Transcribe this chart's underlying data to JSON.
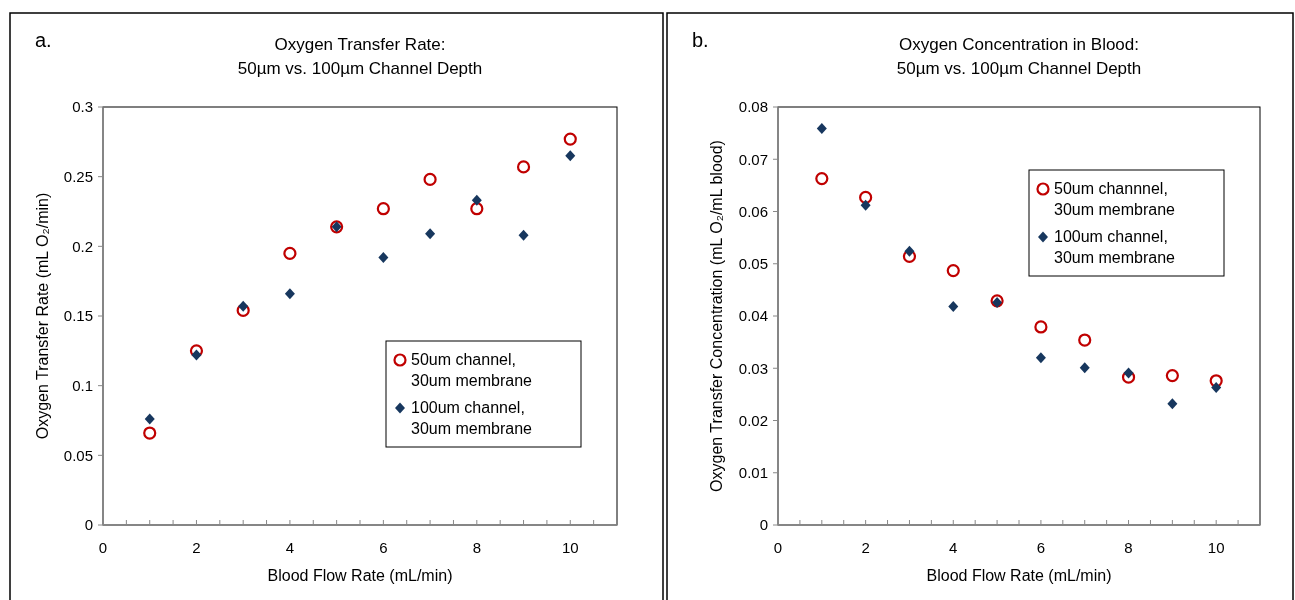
{
  "chart_data": [
    {
      "type": "scatter",
      "title": "Oxygen Transfer Rate:\n50µm vs. 100µm Channel Depth",
      "xlabel": "Blood Flow Rate (mL/min)",
      "ylabel": "Oxygen Transfer Rate (mL O₂/min)",
      "annotations": [
        "a."
      ],
      "x": [
        1,
        2,
        3,
        4,
        5,
        6,
        7,
        8,
        9,
        10
      ],
      "series": [
        {
          "name": "50um channel, 30um membrane",
          "color": "#c00000",
          "marker": "circle",
          "values": [
            0.066,
            0.125,
            0.154,
            0.195,
            0.214,
            0.227,
            0.248,
            0.227,
            0.257,
            0.277
          ]
        },
        {
          "name": "100um channel, 30um membrane",
          "color": "#17375e",
          "marker": "diamond",
          "values": [
            0.076,
            0.122,
            0.157,
            0.166,
            0.214,
            0.192,
            0.209,
            0.233,
            0.208,
            0.265
          ]
        }
      ],
      "xlim": [
        0,
        11
      ],
      "xticks": [
        0,
        {
          "value": 0.5,
          "label": null
        },
        {
          "value": 1,
          "label": null
        },
        {
          "value": 1.5,
          "label": null
        },
        2,
        {
          "value": 2.5,
          "label": null
        },
        {
          "value": 3,
          "label": null
        },
        {
          "value": 3.5,
          "label": null
        },
        4,
        {
          "value": 4.5,
          "label": null
        },
        {
          "value": 5,
          "label": null
        },
        {
          "value": 5.5,
          "label": null
        },
        6,
        {
          "value": 6.5,
          "label": null
        },
        {
          "value": 7,
          "label": null
        },
        {
          "value": 7.5,
          "label": null
        },
        8,
        {
          "value": 8.5,
          "label": null
        },
        {
          "value": 9,
          "label": null
        },
        {
          "value": 9.5,
          "label": null
        },
        10,
        {
          "value": 10.5,
          "label": null
        },
        {
          "value": 11,
          "label": null
        }
      ],
      "ylim": [
        0,
        0.3
      ],
      "yticks": [
        0,
        0.05,
        0.1,
        0.15,
        0.2,
        0.25,
        0.3
      ],
      "grid": false,
      "legend": "bottom right"
    },
    {
      "type": "scatter",
      "title": "Oxygen Concentration in Blood:\n50µm vs. 100µm Channel Depth",
      "xlabel": "Blood Flow Rate (mL/min)",
      "ylabel": "Oxygen Transfer Concentration (mL O₂/mL blood)",
      "annotations": [
        "b."
      ],
      "x": [
        1,
        2,
        3,
        4,
        5,
        6,
        7,
        8,
        9,
        10
      ],
      "series": [
        {
          "name": "50um channnel, 30um membrane",
          "color": "#c00000",
          "marker": "circle",
          "values": [
            0.0663,
            0.0627,
            0.0514,
            0.0487,
            0.0429,
            0.0379,
            0.0354,
            0.0283,
            0.0286,
            0.0276
          ]
        },
        {
          "name": "100um channel, 30um membrane",
          "color": "#17375e",
          "marker": "diamond",
          "values": [
            0.0759,
            0.0612,
            0.0524,
            0.0418,
            0.0426,
            0.032,
            0.0301,
            0.0291,
            0.0232,
            0.0263
          ]
        }
      ],
      "xlim": [
        0,
        11
      ],
      "xticks": [
        0,
        {
          "value": 0.5,
          "label": null
        },
        {
          "value": 1,
          "label": null
        },
        {
          "value": 1.5,
          "label": null
        },
        2,
        {
          "value": 2.5,
          "label": null
        },
        {
          "value": 3,
          "label": null
        },
        {
          "value": 3.5,
          "label": null
        },
        4,
        {
          "value": 4.5,
          "label": null
        },
        {
          "value": 5,
          "label": null
        },
        {
          "value": 5.5,
          "label": null
        },
        6,
        {
          "value": 6.5,
          "label": null
        },
        {
          "value": 7,
          "label": null
        },
        {
          "value": 7.5,
          "label": null
        },
        8,
        {
          "value": 8.5,
          "label": null
        },
        {
          "value": 9,
          "label": null
        },
        {
          "value": 9.5,
          "label": null
        },
        10,
        {
          "value": 10.5,
          "label": null
        },
        {
          "value": 11,
          "label": null
        }
      ],
      "ylim": [
        0,
        0.08
      ],
      "yticks": [
        0,
        0.01,
        0.02,
        0.03,
        0.04,
        0.05,
        0.06,
        0.07,
        0.08
      ],
      "grid": false,
      "legend": "top right"
    }
  ]
}
